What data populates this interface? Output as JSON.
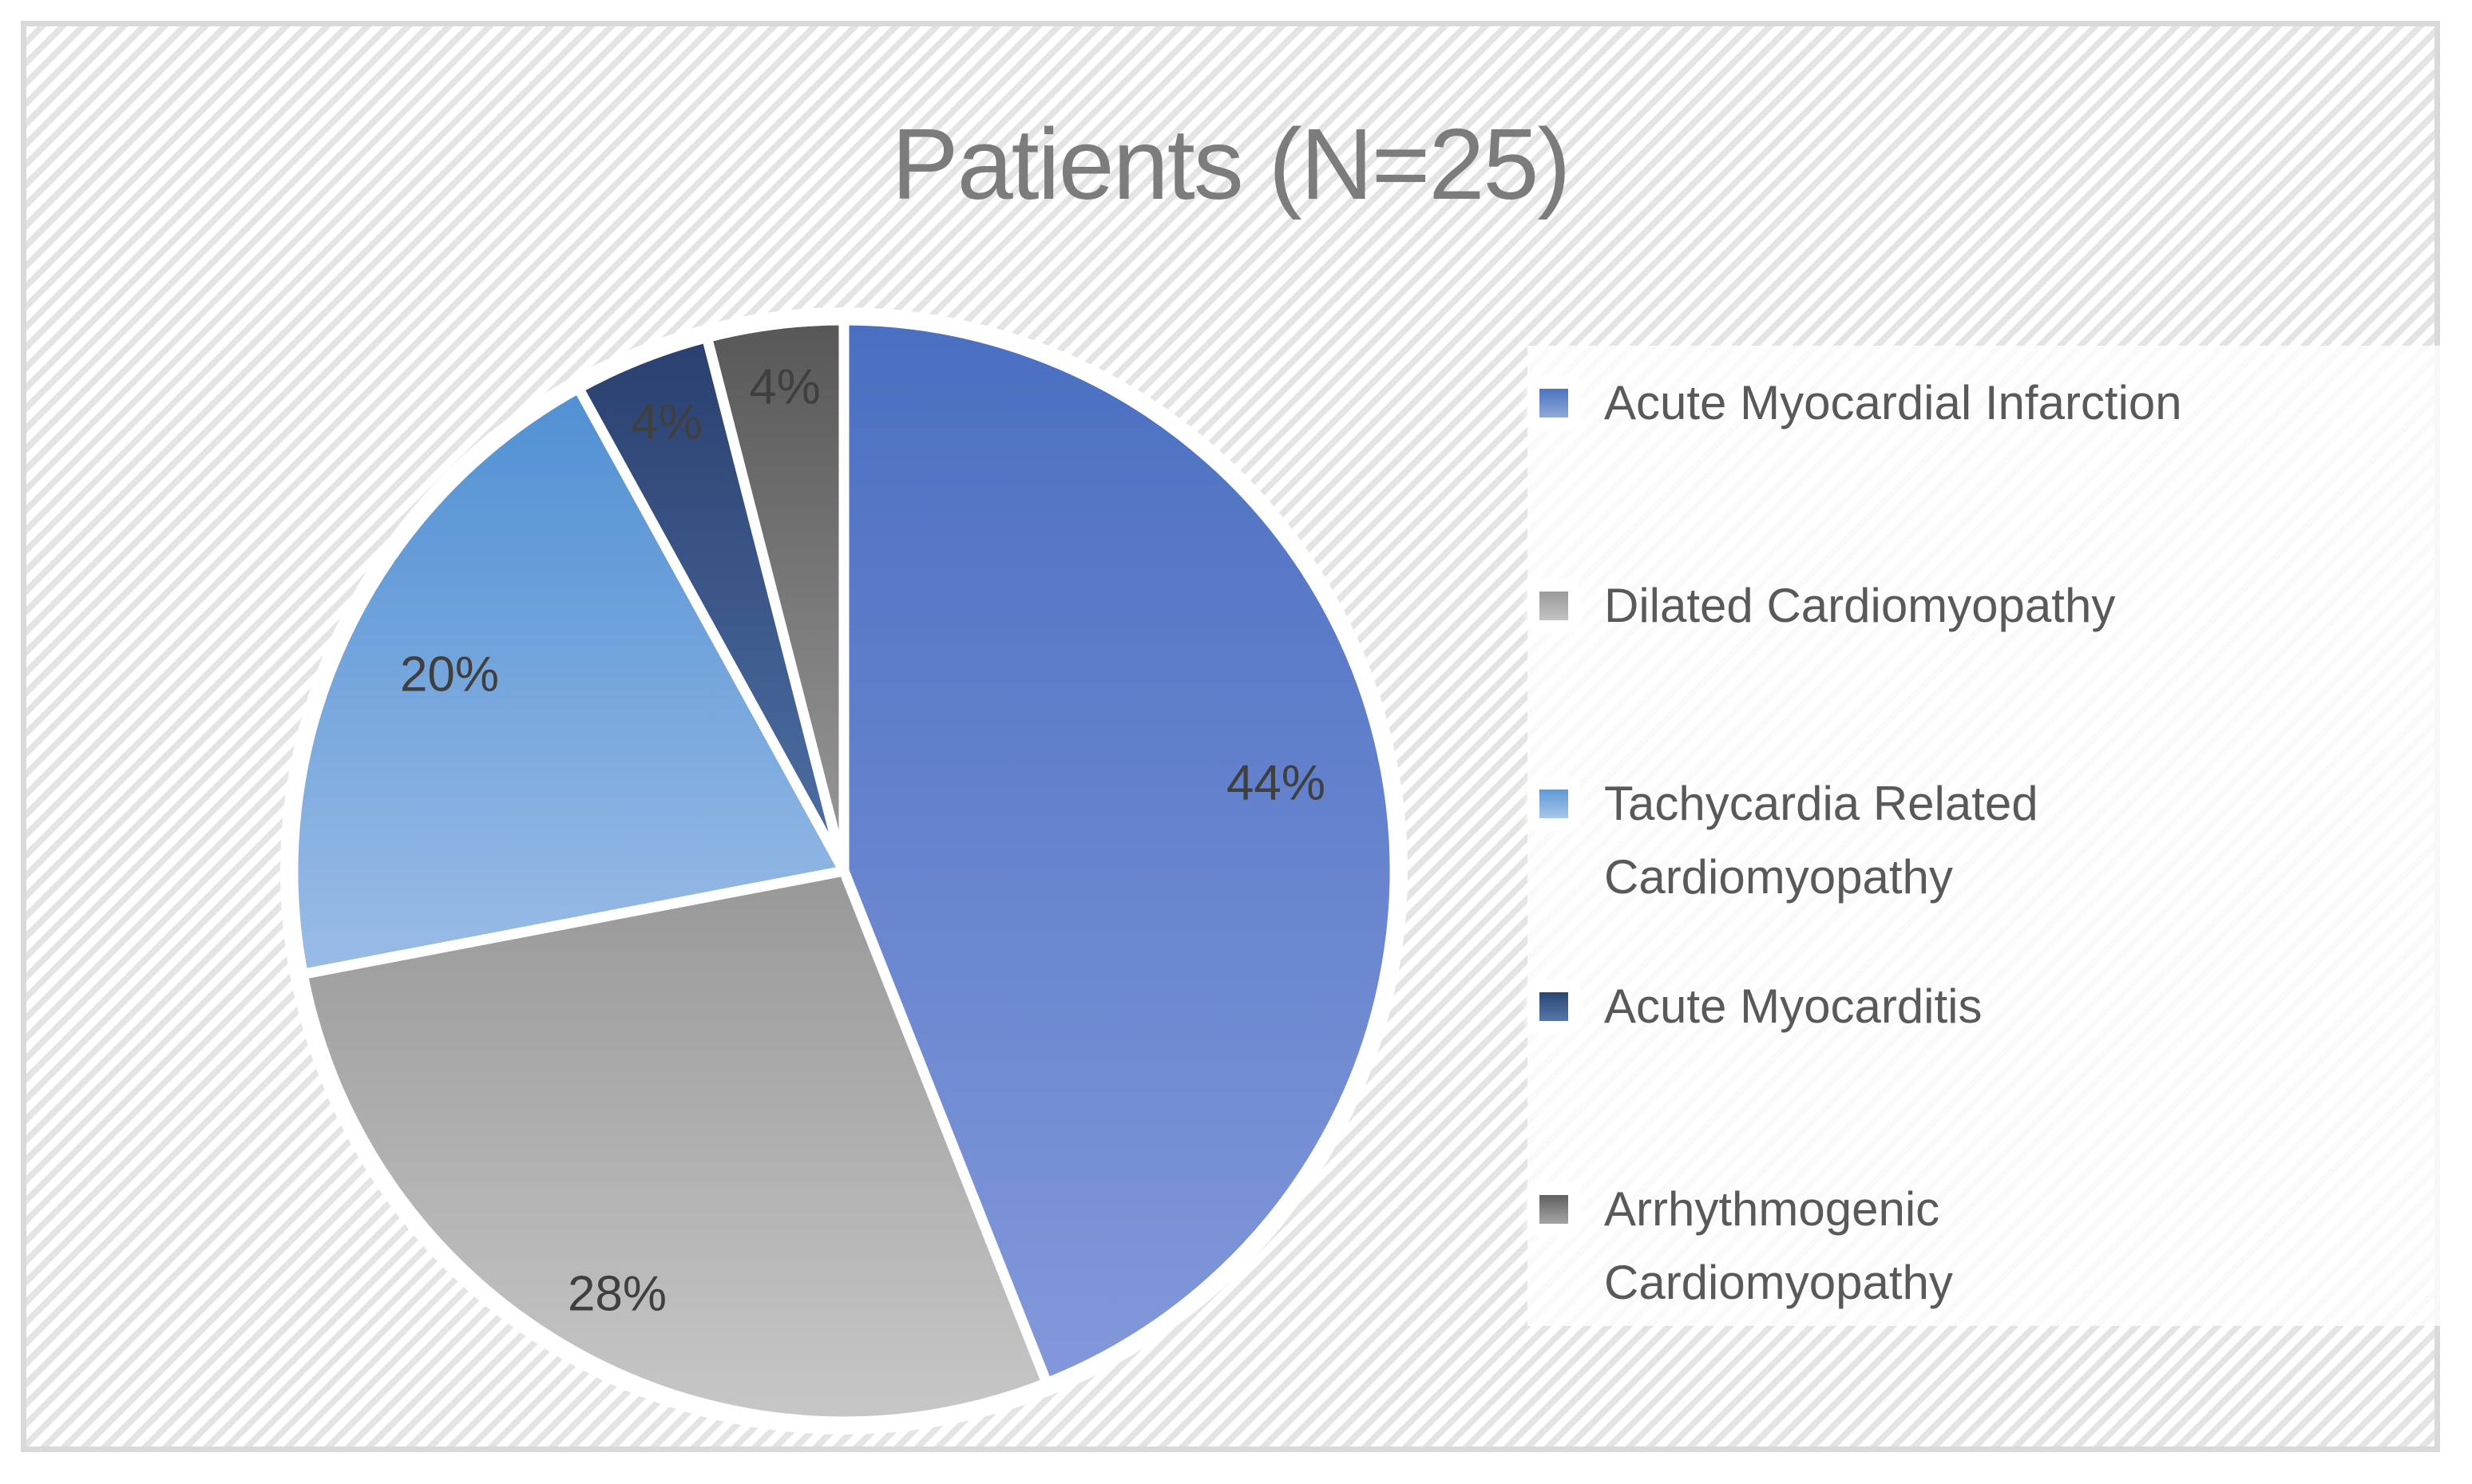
{
  "title": "Patients (N=25)",
  "chart_data": {
    "type": "pie",
    "title": "Patients (N=25)",
    "total_n_label": "N=25",
    "categories": [
      "Acute Myocardial Infarction",
      "Dilated Cardiomyopathy",
      "Tachycardia Related Cardiomyopathy",
      "Acute Myocarditis",
      "Arrhythmogenic Cardiomyopathy"
    ],
    "values": [
      44,
      28,
      20,
      4,
      4
    ],
    "labels": [
      "44%",
      "28%",
      "20%",
      "4%",
      "4%"
    ],
    "unit": "%",
    "start_angle_deg": 0,
    "direction": "clockwise",
    "legend_position": "right",
    "grid": false
  },
  "colors": {
    "slices": [
      {
        "top": "#4A6FC1",
        "bottom": "#8298DA"
      },
      {
        "top": "#989898",
        "bottom": "#C7C7C7"
      },
      {
        "top": "#5090D3",
        "bottom": "#9ABCE6"
      },
      {
        "top": "#2A406E",
        "bottom": "#4E70A5"
      },
      {
        "top": "#575757",
        "bottom": "#9A9A9A"
      }
    ],
    "markers": [
      {
        "top": "#4B74BF",
        "bottom": "#8FA8D7"
      },
      {
        "top": "#9A9A9A",
        "bottom": "#C2C2C2"
      },
      {
        "top": "#5C9AD7",
        "bottom": "#A8C5E9"
      },
      {
        "top": "#2B4574",
        "bottom": "#5578A9"
      },
      {
        "top": "#606060",
        "bottom": "#A5A5A5"
      }
    ],
    "title_text": "#7C7C7C",
    "legend_text": "#595959",
    "percent_text": "#3F3F3F",
    "frame_border": "#D9D9D9",
    "pattern_stripe": "#E4E4E4",
    "slice_separator": "#FFFFFF"
  }
}
